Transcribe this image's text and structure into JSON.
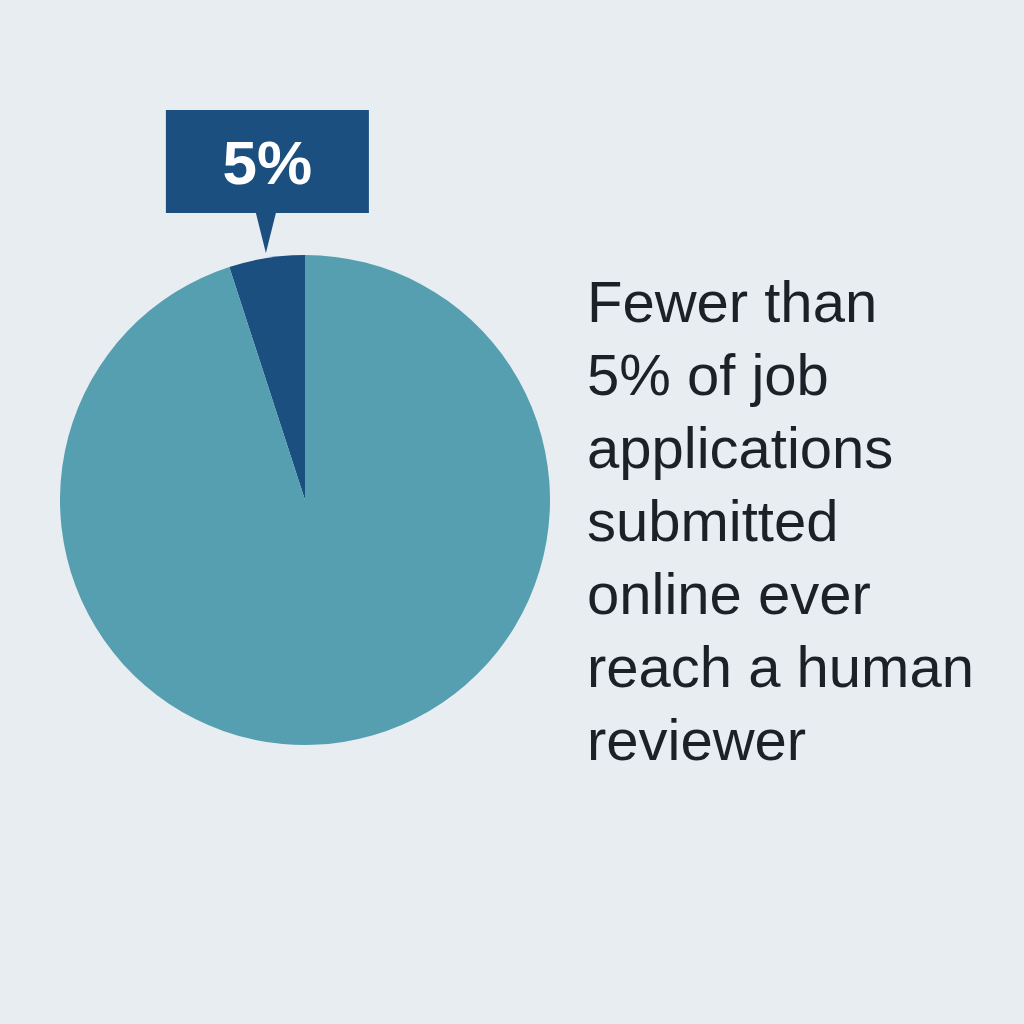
{
  "chart_data": {
    "type": "pie",
    "title": "Fewer than 5% of job applications submitted online ever reach a human reviewer",
    "categories": [
      null,
      null
    ],
    "values": [
      5,
      95
    ],
    "colors": [
      "#1b4f80",
      "#559fb0"
    ],
    "value_labels": [
      "5%",
      null
    ]
  }
}
